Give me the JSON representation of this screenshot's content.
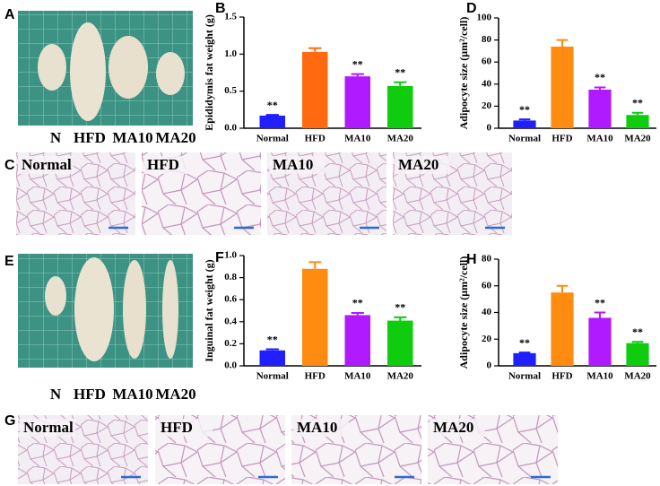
{
  "panel_letters": [
    "A",
    "B",
    "C",
    "D",
    "E",
    "F",
    "G",
    "H"
  ],
  "photo_labels": {
    "A": [
      "N",
      "HFD",
      "MA10",
      "MA20"
    ],
    "E": [
      "N",
      "HFD",
      "MA10",
      "MA20"
    ]
  },
  "histology": {
    "C": [
      "Normal",
      "HFD",
      "MA10",
      "MA20"
    ],
    "G": [
      "Normal",
      "HFD",
      "MA10",
      "MA20"
    ]
  },
  "chart_data": [
    {
      "type": "bar",
      "y_label": "Epididymis fat weight (g)",
      "categories": [
        "Normal",
        "HFD",
        "MA10",
        "MA20"
      ],
      "values": [
        0.17,
        1.03,
        0.7,
        0.57
      ],
      "errors": [
        0.01,
        0.05,
        0.03,
        0.05
      ],
      "annotations": [
        "**",
        null,
        "**",
        "**"
      ],
      "colors": [
        "#1f1fff",
        "#ff6a10",
        "#b01aff",
        "#0fcc0f"
      ],
      "ylim": [
        0,
        1.5
      ],
      "yticks": [
        {
          "value": 0,
          "label": "0.0"
        },
        {
          "value": 0.5,
          "label": "0.5"
        },
        {
          "value": 1,
          "label": "1.0"
        },
        {
          "value": 1.5,
          "label": "1.5"
        }
      ]
    },
    {
      "type": "bar",
      "y_label": "Adipocyte size (μm²/cell)",
      "categories": [
        "Normal",
        "HFD",
        "MA10",
        "MA20"
      ],
      "values": [
        7,
        74,
        35,
        12
      ],
      "errors": [
        1,
        6,
        2,
        2
      ],
      "annotations": [
        "**",
        null,
        "**",
        "**"
      ],
      "colors": [
        "#1f1fff",
        "#ff8c10",
        "#b01aff",
        "#0fcc0f"
      ],
      "ylim": [
        0,
        100
      ],
      "yticks": [
        0,
        20,
        40,
        60,
        80,
        100
      ]
    },
    {
      "type": "bar",
      "y_label": "Inguinal fat weight (g)",
      "categories": [
        "Normal",
        "HFD",
        "MA10",
        "MA20"
      ],
      "values": [
        0.14,
        0.88,
        0.46,
        0.41
      ],
      "errors": [
        0.01,
        0.06,
        0.02,
        0.03
      ],
      "annotations": [
        "**",
        null,
        "**",
        "**"
      ],
      "colors": [
        "#1f1fff",
        "#ff8c10",
        "#b01aff",
        "#0fcc0f"
      ],
      "ylim": [
        0,
        1
      ],
      "yticks": [
        {
          "value": 0,
          "label": "0.0"
        },
        {
          "value": 0.2,
          "label": "0.2"
        },
        {
          "value": 0.4,
          "label": "0.4"
        },
        {
          "value": 0.6,
          "label": "0.6"
        },
        {
          "value": 0.8,
          "label": "0.8"
        },
        {
          "value": 1,
          "label": "1.0"
        }
      ]
    },
    {
      "type": "bar",
      "y_label": "Adipocyte size (μm²/cell)",
      "categories": [
        "Normal",
        "HFD",
        "MA10",
        "MA20"
      ],
      "values": [
        9.5,
        55,
        36,
        17
      ],
      "errors": [
        0.5,
        5,
        4,
        1
      ],
      "annotations": [
        "**",
        null,
        "**",
        "**"
      ],
      "colors": [
        "#1f1fff",
        "#ff8c10",
        "#b01aff",
        "#0fcc0f"
      ],
      "ylim": [
        0,
        80
      ],
      "yticks": [
        0,
        20,
        40,
        60,
        80
      ]
    }
  ]
}
